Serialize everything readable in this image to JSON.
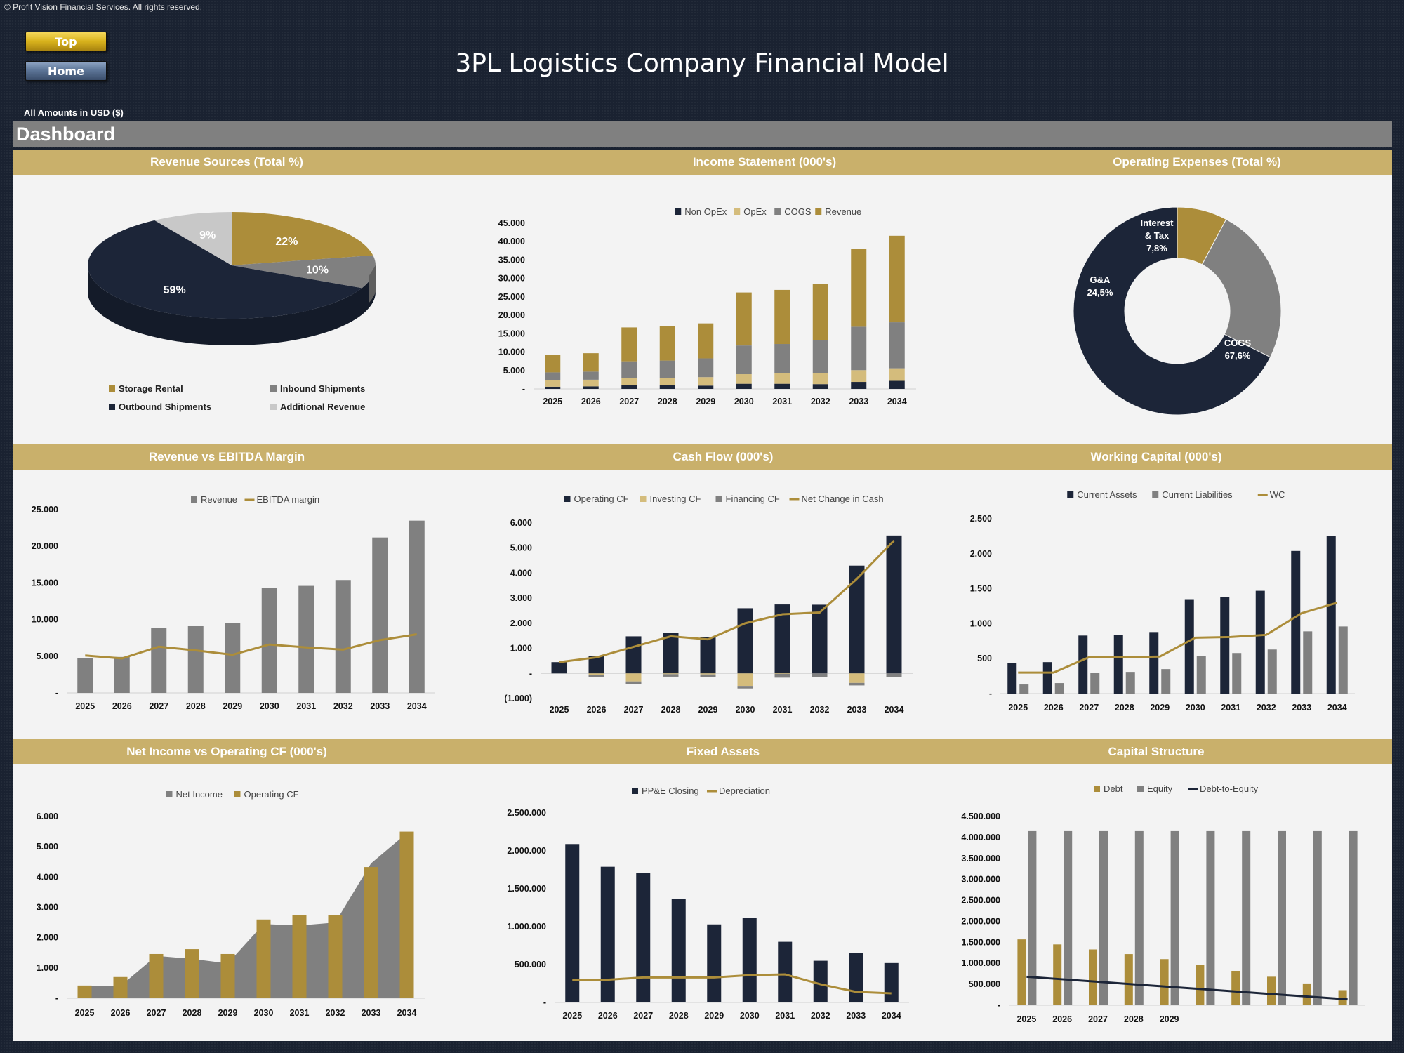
{
  "copyright": "© Profit Vision Financial Services. All rights reserved.",
  "nav": {
    "top": "Top",
    "home": "Home"
  },
  "title": "3PL Logistics Company Financial Model",
  "amounts_note": "All Amounts in  USD ($)",
  "section": "Dashboard",
  "colors": {
    "navy": "#1c2538",
    "gold": "#ac8d3a",
    "grey": "#808080",
    "tan": "#d4bc7c",
    "light": "#c8c8c8",
    "band": "#c9b06b",
    "background": "#1a2231"
  },
  "chart_data": [
    {
      "type": "pie",
      "title": "Revenue Sources (Total %)",
      "labels": [
        "Storage Rental",
        "Inbound Shipments",
        "Outbound Shipments",
        "Additional Revenue"
      ],
      "values": [
        22,
        10,
        59,
        9
      ],
      "value_labels": [
        "22%",
        "10%",
        "59%",
        "9%"
      ],
      "colors": [
        "#ac8d3a",
        "#808080",
        "#1c2538",
        "#c8c8c8"
      ],
      "legend": "bottom"
    },
    {
      "type": "bar",
      "stacked": true,
      "title": "Income Statement (000's)",
      "categories": [
        "2025",
        "2026",
        "2027",
        "2028",
        "2029",
        "2030",
        "2031",
        "2032",
        "2033",
        "2034"
      ],
      "series": [
        {
          "name": "Non OpEx",
          "color": "#1c2538",
          "values": [
            600,
            700,
            1000,
            1000,
            900,
            1400,
            1400,
            1300,
            1900,
            2200
          ]
        },
        {
          "name": "OpEx",
          "color": "#d4bc7c",
          "values": [
            1800,
            1800,
            2000,
            2000,
            2300,
            2600,
            2800,
            2900,
            3200,
            3400
          ]
        },
        {
          "name": "COGS",
          "color": "#808080",
          "values": [
            2100,
            2200,
            4500,
            4700,
            5100,
            7800,
            8000,
            9000,
            11800,
            12500
          ]
        },
        {
          "name": "Revenue",
          "color": "#ac8d3a",
          "values": [
            4800,
            5000,
            9200,
            9400,
            9500,
            14400,
            14700,
            15300,
            21200,
            23500
          ]
        }
      ],
      "y_ticks": [
        "45.000",
        "40.000",
        "35.000",
        "30.000",
        "25.000",
        "20.000",
        "15.000",
        "10.000",
        "5.000",
        "-"
      ],
      "ylim": [
        0,
        45000
      ],
      "legend": "top"
    },
    {
      "type": "pie",
      "donut": true,
      "title": "Operating Expenses (Total %)",
      "labels": [
        "Interest & Tax",
        "G&A",
        "COGS"
      ],
      "values": [
        7.8,
        24.5,
        67.6
      ],
      "value_labels": [
        "7,8%",
        "24,5%",
        "67,6%"
      ],
      "colors": [
        "#ac8d3a",
        "#808080",
        "#1c2538"
      ]
    },
    {
      "type": "bar",
      "title": "Revenue vs EBITDA Margin",
      "categories": [
        "2025",
        "2026",
        "2027",
        "2028",
        "2029",
        "2030",
        "2031",
        "2032",
        "2033",
        "2034"
      ],
      "series": [
        {
          "name": "Revenue",
          "type": "bar",
          "color": "#808080",
          "values": [
            4700,
            4900,
            8900,
            9100,
            9500,
            14300,
            14600,
            15400,
            21200,
            23500
          ]
        },
        {
          "name": "EBITDA margin",
          "type": "line",
          "color": "#ac8d3a",
          "values": [
            5100,
            4700,
            6300,
            5800,
            5200,
            6600,
            6200,
            5900,
            7200,
            8000
          ]
        }
      ],
      "y_ticks": [
        "25.000",
        "20.000",
        "15.000",
        "10.000",
        "5.000",
        "-"
      ],
      "ylim": [
        0,
        25000
      ],
      "legend": "top"
    },
    {
      "type": "bar",
      "title": "Cash Flow (000's)",
      "categories": [
        "2025",
        "2026",
        "2027",
        "2028",
        "2029",
        "2030",
        "2031",
        "2032",
        "2033",
        "2034"
      ],
      "series": [
        {
          "name": "Operating CF",
          "type": "bar",
          "color": "#1c2538",
          "values": [
            450,
            700,
            1480,
            1620,
            1460,
            2600,
            2750,
            2740,
            4300,
            5500
          ]
        },
        {
          "name": "Investing CF",
          "type": "bar",
          "color": "#d4bc7c",
          "values": [
            0,
            -60,
            -320,
            -30,
            -40,
            -500,
            -20,
            0,
            -380,
            0
          ]
        },
        {
          "name": "Financing CF",
          "type": "bar",
          "color": "#808080",
          "values": [
            0,
            -100,
            -100,
            -100,
            -100,
            -100,
            -150,
            -150,
            -100,
            -150
          ]
        },
        {
          "name": "Net Change in Cash",
          "type": "line",
          "color": "#ac8d3a",
          "values": [
            450,
            640,
            1060,
            1480,
            1360,
            2000,
            2360,
            2430,
            3770,
            5300
          ]
        }
      ],
      "y_ticks": [
        "6.000",
        "5.000",
        "4.000",
        "3.000",
        "2.000",
        "1.000",
        "-",
        "(1.000)"
      ],
      "ylim": [
        -1000,
        6000
      ],
      "legend": "top"
    },
    {
      "type": "bar",
      "title": "Working Capital (000's)",
      "categories": [
        "2025",
        "2026",
        "2027",
        "2028",
        "2029",
        "2030",
        "2031",
        "2032",
        "2033",
        "2034"
      ],
      "series": [
        {
          "name": "Current Assets",
          "type": "bar",
          "color": "#1c2538",
          "values": [
            440,
            450,
            830,
            840,
            880,
            1350,
            1380,
            1470,
            2040,
            2250
          ]
        },
        {
          "name": "Current Liabilities",
          "type": "bar",
          "color": "#808080",
          "values": [
            130,
            150,
            300,
            310,
            350,
            540,
            580,
            630,
            890,
            960
          ]
        },
        {
          "name": "WC",
          "type": "line",
          "color": "#ac8d3a",
          "values": [
            300,
            300,
            520,
            520,
            530,
            800,
            810,
            840,
            1150,
            1300
          ]
        }
      ],
      "y_ticks": [
        "2.500",
        "2.000",
        "1.500",
        "1.000",
        "500",
        "-"
      ],
      "ylim": [
        0,
        2500
      ],
      "legend": "top"
    },
    {
      "type": "area",
      "title": "Net Income vs Operating CF (000's)",
      "categories": [
        "2025",
        "2026",
        "2027",
        "2028",
        "2029",
        "2030",
        "2031",
        "2032",
        "2033",
        "2034"
      ],
      "series": [
        {
          "name": "Net Income",
          "type": "area",
          "color": "#808080",
          "values": [
            400,
            400,
            1400,
            1300,
            1150,
            2450,
            2400,
            2500,
            4450,
            5450
          ]
        },
        {
          "name": "Operating CF",
          "type": "bar",
          "color": "#ac8d3a",
          "values": [
            420,
            700,
            1460,
            1620,
            1460,
            2600,
            2750,
            2740,
            4330,
            5500
          ]
        }
      ],
      "y_ticks": [
        "6.000",
        "5.000",
        "4.000",
        "3.000",
        "2.000",
        "1.000",
        "-"
      ],
      "ylim": [
        0,
        6000
      ],
      "legend": "top"
    },
    {
      "type": "bar",
      "title": "Fixed Assets",
      "categories": [
        "2025",
        "2026",
        "2027",
        "2028",
        "2029",
        "2030",
        "2031",
        "2032",
        "2033",
        "2034"
      ],
      "series": [
        {
          "name": "PP&E Closing",
          "type": "bar",
          "color": "#1c2538",
          "values": [
            2090000,
            1790000,
            1710000,
            1370000,
            1030000,
            1120000,
            800000,
            550000,
            650000,
            520000
          ]
        },
        {
          "name": "Depreciation",
          "type": "line",
          "color": "#ac8d3a",
          "values": [
            300000,
            300000,
            330000,
            330000,
            330000,
            360000,
            370000,
            240000,
            140000,
            120000
          ]
        }
      ],
      "y_ticks": [
        "2.500.000",
        "2.000.000",
        "1.500.000",
        "1.000.000",
        "500.000",
        "-"
      ],
      "ylim": [
        0,
        2500000
      ],
      "legend": "top"
    },
    {
      "type": "bar",
      "title": "Capital Structure",
      "categories": [
        "2025",
        "2026",
        "2027",
        "2028",
        "2029",
        "",
        "",
        "",
        "",
        ""
      ],
      "series": [
        {
          "name": "Debt",
          "type": "bar",
          "color": "#ac8d3a",
          "values": [
            1570000,
            1450000,
            1330000,
            1220000,
            1100000,
            960000,
            820000,
            680000,
            520000,
            360000
          ]
        },
        {
          "name": "Equity",
          "type": "bar",
          "color": "#808080",
          "values": [
            4150000,
            4150000,
            4150000,
            4150000,
            4150000,
            4150000,
            4150000,
            4150000,
            4150000,
            4150000
          ]
        },
        {
          "name": "Debt-to-Equity",
          "type": "line",
          "color": "#1c2538",
          "values": [
            680000,
            620000,
            560000,
            500000,
            440000,
            380000,
            320000,
            260000,
            200000,
            140000
          ]
        }
      ],
      "y_ticks": [
        "4.500.000",
        "4.000.000",
        "3.500.000",
        "3.000.000",
        "2.500.000",
        "2.000.000",
        "1.500.000",
        "1.000.000",
        "500.000",
        "-"
      ],
      "ylim": [
        0,
        4500000
      ],
      "legend": "top"
    }
  ]
}
